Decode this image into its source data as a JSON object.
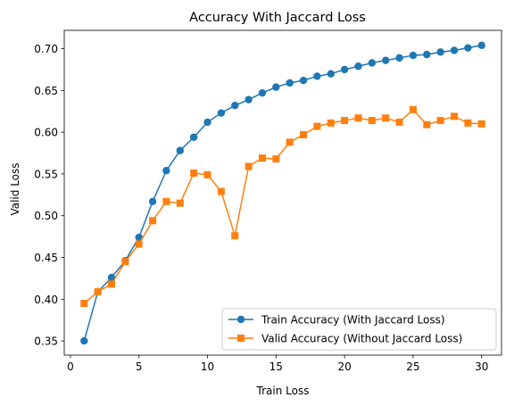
{
  "chart_data": {
    "type": "line",
    "title": "Accuracy With Jaccard Loss",
    "xlabel": "Train Loss",
    "ylabel": "Valid Loss",
    "xlim": [
      -0.45,
      31.45
    ],
    "ylim": [
      0.333,
      0.722
    ],
    "xticks": [
      0,
      5,
      10,
      15,
      20,
      25,
      30
    ],
    "yticks": [
      0.35,
      0.4,
      0.45,
      0.5,
      0.55,
      0.6,
      0.65,
      0.7
    ],
    "legend_position": "lower-right",
    "grid": false,
    "x": [
      1,
      2,
      3,
      4,
      5,
      6,
      7,
      8,
      9,
      10,
      11,
      12,
      13,
      14,
      15,
      16,
      17,
      18,
      19,
      20,
      21,
      22,
      23,
      24,
      25,
      26,
      27,
      28,
      29,
      30
    ],
    "series": [
      {
        "name": "Train Accuracy (With Jaccard Loss)",
        "color": "#1f77b4",
        "marker": "circle",
        "values": [
          0.35,
          0.409,
          0.426,
          0.446,
          0.474,
          0.517,
          0.554,
          0.578,
          0.594,
          0.612,
          0.623,
          0.632,
          0.639,
          0.647,
          0.654,
          0.659,
          0.662,
          0.667,
          0.67,
          0.675,
          0.679,
          0.683,
          0.686,
          0.689,
          0.692,
          0.693,
          0.696,
          0.698,
          0.701,
          0.704
        ]
      },
      {
        "name": "Valid Accuracy (Without Jaccard Loss)",
        "color": "#ff7f0e",
        "marker": "square",
        "values": [
          0.395,
          0.409,
          0.418,
          0.445,
          0.466,
          0.494,
          0.517,
          0.515,
          0.551,
          0.549,
          0.529,
          0.476,
          0.559,
          0.569,
          0.568,
          0.588,
          0.597,
          0.607,
          0.611,
          0.614,
          0.617,
          0.614,
          0.617,
          0.612,
          0.627,
          0.609,
          0.614,
          0.619,
          0.611,
          0.61
        ]
      }
    ]
  }
}
